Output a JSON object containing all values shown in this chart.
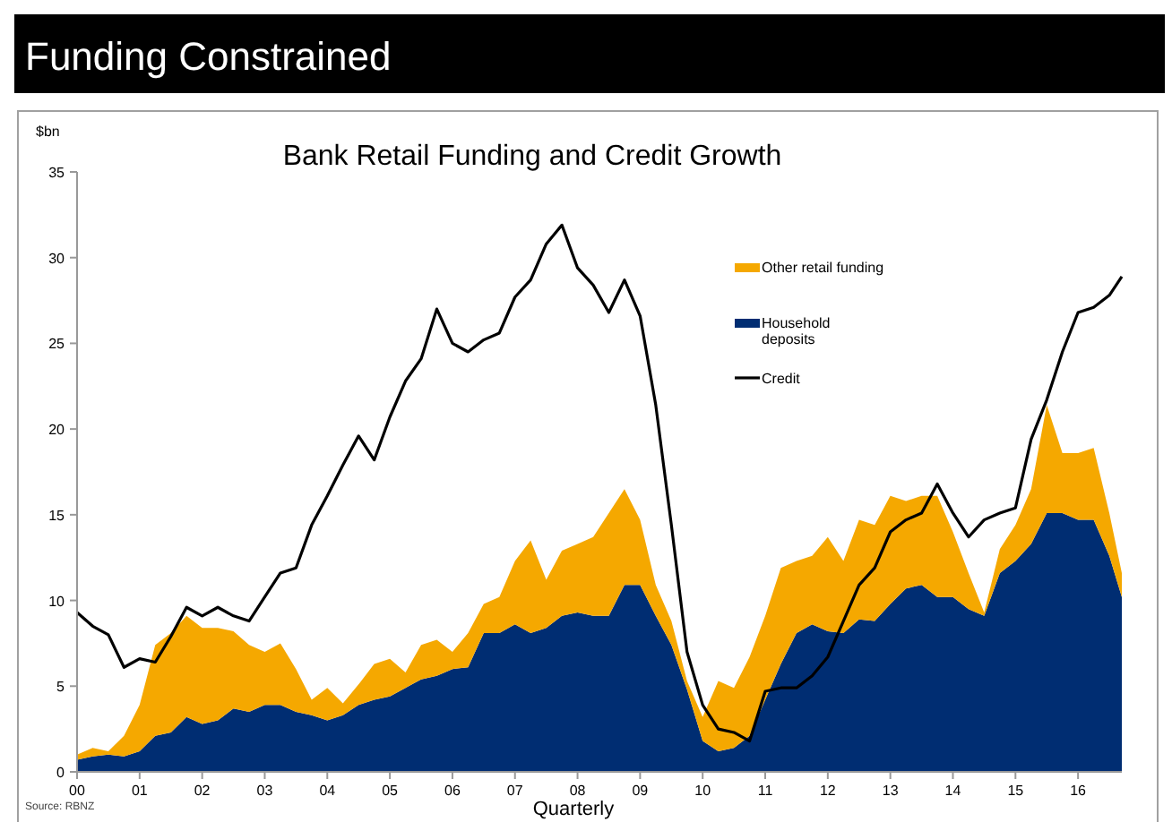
{
  "chart_data": {
    "type": "area",
    "title": "Funding Constrained",
    "subtitle": "Bank Retail Funding and Credit Growth",
    "ylabel": "$bn",
    "xlabel": "Quarterly",
    "annotations": [
      "Source: RBNZ"
    ],
    "stacked": true,
    "legend": "top right",
    "grid": false,
    "x": [
      0,
      0.25,
      0.5,
      0.75,
      1,
      1.25,
      1.5,
      1.75,
      2,
      2.25,
      2.5,
      2.75,
      3,
      3.25,
      3.5,
      3.75,
      4,
      4.25,
      4.5,
      4.75,
      5,
      5.25,
      5.5,
      5.75,
      6,
      6.25,
      6.5,
      6.75,
      7,
      7.25,
      7.5,
      7.75,
      8,
      8.25,
      8.5,
      8.75,
      9,
      9.25,
      9.5,
      9.75,
      10,
      10.25,
      10.5,
      10.75,
      11,
      11.25,
      11.5,
      11.75,
      12,
      12.25,
      12.5,
      12.75,
      13,
      13.25,
      13.5,
      13.75,
      14,
      14.25,
      14.5,
      14.75,
      15,
      15.25,
      15.5,
      15.75,
      16,
      16.25,
      16.5,
      16.7
    ],
    "xlim": [
      0,
      16.7
    ],
    "xticks": [
      {
        "value": 0,
        "label": "00"
      },
      {
        "value": 1,
        "label": "01"
      },
      {
        "value": 2,
        "label": "02"
      },
      {
        "value": 3,
        "label": "03"
      },
      {
        "value": 4,
        "label": "04"
      },
      {
        "value": 5,
        "label": "05"
      },
      {
        "value": 6,
        "label": "06"
      },
      {
        "value": 7,
        "label": "07"
      },
      {
        "value": 8,
        "label": "08"
      },
      {
        "value": 9,
        "label": "09"
      },
      {
        "value": 10,
        "label": "10"
      },
      {
        "value": 11,
        "label": "11"
      },
      {
        "value": 12,
        "label": "12"
      },
      {
        "value": 13,
        "label": "13"
      },
      {
        "value": 14,
        "label": "14"
      },
      {
        "value": 15,
        "label": "15"
      },
      {
        "value": 16,
        "label": "16"
      }
    ],
    "ylim": [
      0,
      35
    ],
    "yticks": [
      0,
      5,
      10,
      15,
      20,
      25,
      30,
      35
    ],
    "series": [
      {
        "name": "Household deposits",
        "color": "#002d72",
        "values": [
          0.7,
          0.9,
          1.0,
          0.9,
          1.2,
          2.1,
          2.3,
          3.2,
          2.8,
          3.0,
          3.7,
          3.5,
          3.9,
          3.9,
          3.5,
          3.3,
          3.0,
          3.3,
          3.9,
          4.2,
          4.4,
          4.9,
          5.4,
          5.6,
          6.0,
          6.1,
          8.1,
          8.1,
          8.6,
          8.1,
          8.4,
          9.1,
          9.3,
          9.1,
          9.1,
          10.9,
          10.9,
          9.1,
          7.4,
          4.8,
          1.8,
          1.2,
          1.4,
          2.1,
          4.2,
          6.3,
          8.1,
          8.6,
          8.2,
          8.1,
          8.9,
          8.8,
          9.8,
          10.7,
          10.9,
          10.2,
          10.2,
          9.5,
          9.1,
          11.6,
          12.3,
          13.3,
          15.1,
          15.1,
          14.7,
          14.7,
          12.6,
          10.2
        ]
      },
      {
        "name": "Other retail funding",
        "color": "#f5a800",
        "values": [
          0.3,
          0.5,
          0.2,
          1.2,
          2.7,
          5.3,
          5.8,
          5.9,
          5.6,
          5.4,
          4.5,
          3.9,
          3.1,
          3.6,
          2.5,
          0.9,
          1.9,
          0.7,
          1.2,
          2.1,
          2.2,
          0.9,
          2.0,
          2.1,
          1.0,
          2.0,
          1.7,
          2.1,
          3.7,
          5.4,
          2.8,
          3.8,
          4.0,
          4.6,
          6.0,
          5.6,
          3.8,
          1.8,
          1.4,
          0.5,
          1.4,
          4.1,
          3.5,
          4.6,
          4.9,
          5.6,
          4.2,
          4.0,
          5.5,
          4.2,
          5.8,
          5.6,
          6.3,
          5.1,
          5.2,
          5.9,
          3.8,
          2.1,
          0.2,
          1.4,
          2.1,
          3.2,
          6.3,
          3.5,
          3.9,
          4.2,
          2.5,
          1.4
        ]
      },
      {
        "name": "Credit",
        "type": "line",
        "color": "#000000",
        "values": [
          9.3,
          8.5,
          8.0,
          6.1,
          6.6,
          6.4,
          7.9,
          9.6,
          9.1,
          9.6,
          9.1,
          8.8,
          10.2,
          11.6,
          11.9,
          14.4,
          16.1,
          17.9,
          19.6,
          18.2,
          20.7,
          22.8,
          24.1,
          27.0,
          25.0,
          24.5,
          25.2,
          25.6,
          27.7,
          28.7,
          30.8,
          31.9,
          29.4,
          28.4,
          26.8,
          28.7,
          26.6,
          21.4,
          14.4,
          7.0,
          3.9,
          2.5,
          2.3,
          1.8,
          4.7,
          4.9,
          4.9,
          5.6,
          6.7,
          8.8,
          10.9,
          11.9,
          14.0,
          14.7,
          15.1,
          16.8,
          15.1,
          13.7,
          14.7,
          15.1,
          15.4,
          19.4,
          21.7,
          24.5,
          26.8,
          27.1,
          27.8,
          28.9
        ]
      }
    ]
  }
}
